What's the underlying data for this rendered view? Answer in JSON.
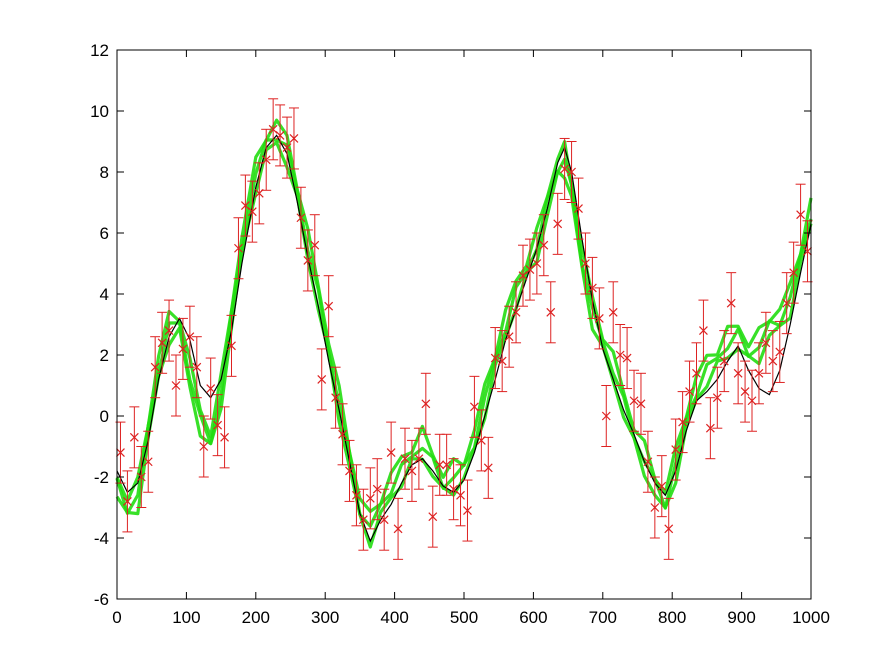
{
  "chart_data": {
    "type": "line",
    "title": "",
    "xlabel": "",
    "ylabel": "",
    "xlim": [
      0,
      1000
    ],
    "ylim": [
      -6,
      12
    ],
    "grid": false,
    "legend": "none",
    "x_ticks": [
      "0",
      "100",
      "200",
      "300",
      "400",
      "500",
      "600",
      "700",
      "800",
      "900",
      "1000"
    ],
    "y_ticks": [
      "-6",
      "-4",
      "-2",
      "0",
      "2",
      "4",
      "6",
      "8",
      "10",
      "12"
    ],
    "colors": {
      "truth": "#000000",
      "samples": "#22dd11",
      "observations": "#dd2222",
      "axes": "#000000"
    },
    "series": [
      {
        "kind": "line",
        "x": [
          0,
          15,
          30,
          45,
          60,
          75,
          90,
          105,
          120,
          135,
          150,
          165,
          180,
          200,
          215,
          230,
          245,
          260,
          275,
          290,
          305,
          320,
          335,
          350,
          365,
          380,
          395,
          410,
          425,
          440,
          455,
          470,
          485,
          500,
          515,
          530,
          545,
          560,
          575,
          590,
          605,
          620,
          635,
          645,
          655,
          670,
          685,
          700,
          715,
          730,
          745,
          760,
          775,
          790,
          805,
          820,
          835,
          850,
          865,
          880,
          895,
          910,
          925,
          940,
          955,
          970,
          985,
          1000
        ],
        "y": [
          -1.8,
          -2.5,
          -2.2,
          -0.8,
          1.2,
          2.6,
          3.2,
          2.5,
          1.0,
          0.6,
          1.2,
          2.8,
          5.0,
          7.5,
          8.8,
          9.2,
          8.6,
          7.0,
          5.2,
          3.6,
          1.8,
          0.2,
          -1.5,
          -3.2,
          -4.1,
          -3.4,
          -2.9,
          -2.2,
          -1.6,
          -1.4,
          -1.8,
          -2.3,
          -2.5,
          -2.1,
          -1.2,
          0.0,
          1.2,
          2.5,
          3.5,
          4.5,
          5.5,
          6.8,
          8.3,
          8.8,
          8.0,
          5.8,
          3.8,
          2.2,
          1.2,
          0.2,
          -0.6,
          -1.5,
          -2.2,
          -2.6,
          -1.8,
          -0.5,
          0.5,
          0.8,
          1.2,
          1.8,
          2.3,
          1.5,
          0.9,
          0.7,
          1.5,
          3.0,
          4.7,
          6.3
        ]
      },
      {
        "kind": "band",
        "x": [
          0,
          15,
          30,
          45,
          60,
          75,
          90,
          105,
          120,
          135,
          150,
          165,
          180,
          200,
          215,
          230,
          245,
          260,
          275,
          290,
          305,
          320,
          335,
          350,
          365,
          380,
          395,
          410,
          425,
          440,
          455,
          470,
          485,
          500,
          515,
          530,
          545,
          560,
          575,
          590,
          605,
          620,
          635,
          645,
          655,
          670,
          685,
          700,
          715,
          730,
          745,
          760,
          775,
          790,
          805,
          820,
          835,
          850,
          865,
          880,
          895,
          910,
          925,
          940,
          955,
          970,
          985,
          1000
        ],
        "y": [
          -2.3,
          -3.0,
          -2.6,
          -0.5,
          1.6,
          2.9,
          3.0,
          1.4,
          -0.2,
          -0.8,
          0.8,
          3.2,
          5.6,
          7.9,
          8.9,
          9.3,
          8.7,
          7.3,
          5.6,
          3.9,
          2.2,
          0.4,
          -1.4,
          -3.0,
          -3.7,
          -3.0,
          -2.3,
          -1.8,
          -1.3,
          -0.9,
          -1.6,
          -2.2,
          -2.0,
          -1.8,
          -0.8,
          0.5,
          1.8,
          3.0,
          4.0,
          4.8,
          5.6,
          6.9,
          8.2,
          8.4,
          7.4,
          5.2,
          3.4,
          2.4,
          1.6,
          0.4,
          -0.6,
          -1.4,
          -2.3,
          -2.8,
          -1.6,
          -0.2,
          0.9,
          1.5,
          1.9,
          2.4,
          2.6,
          2.1,
          2.3,
          2.9,
          3.2,
          3.8,
          5.2,
          6.7
        ]
      },
      {
        "kind": "errorbar",
        "x": [
          5,
          15,
          25,
          35,
          45,
          55,
          65,
          75,
          85,
          95,
          105,
          115,
          125,
          135,
          145,
          155,
          165,
          175,
          185,
          195,
          205,
          215,
          225,
          235,
          245,
          255,
          265,
          275,
          285,
          295,
          305,
          315,
          325,
          335,
          345,
          355,
          365,
          375,
          385,
          395,
          405,
          415,
          425,
          435,
          445,
          455,
          465,
          475,
          485,
          495,
          505,
          515,
          525,
          535,
          545,
          555,
          565,
          575,
          585,
          595,
          605,
          615,
          625,
          635,
          645,
          655,
          665,
          675,
          685,
          695,
          705,
          715,
          725,
          735,
          745,
          755,
          765,
          775,
          785,
          795,
          805,
          815,
          825,
          835,
          845,
          855,
          865,
          875,
          885,
          895,
          905,
          915,
          925,
          935,
          945,
          955,
          965,
          975,
          985,
          995
        ],
        "y": [
          -1.2,
          -2.8,
          -0.7,
          -2.0,
          -1.5,
          1.6,
          2.4,
          2.8,
          1.0,
          2.2,
          2.6,
          1.6,
          -1.0,
          0.9,
          -0.3,
          -0.7,
          2.3,
          5.5,
          6.9,
          6.7,
          7.3,
          8.4,
          9.4,
          9.2,
          8.8,
          9.1,
          6.5,
          5.1,
          5.6,
          1.2,
          3.6,
          0.6,
          -0.6,
          -1.8,
          -2.6,
          -3.4,
          -2.7,
          -2.4,
          -3.4,
          -1.2,
          -3.7,
          -1.4,
          -1.8,
          -1.4,
          0.4,
          -3.3,
          -1.6,
          -1.6,
          -2.4,
          -2.6,
          -3.1,
          0.3,
          -0.8,
          -1.7,
          1.9,
          1.8,
          2.6,
          3.4,
          4.6,
          4.8,
          5.0,
          5.6,
          3.4,
          6.3,
          8.1,
          8.0,
          6.8,
          5.0,
          4.2,
          3.2,
          0.0,
          3.4,
          2.0,
          1.9,
          0.5,
          0.4,
          -1.5,
          -3.0,
          -2.3,
          -3.7,
          -1.1,
          -0.2,
          0.8,
          1.4,
          2.8,
          -0.4,
          0.6,
          1.8,
          3.7,
          1.4,
          0.8,
          0.5,
          1.4,
          2.4,
          1.8,
          2.1,
          3.7,
          4.7,
          6.6,
          5.4
        ],
        "err": 1.0
      }
    ]
  }
}
